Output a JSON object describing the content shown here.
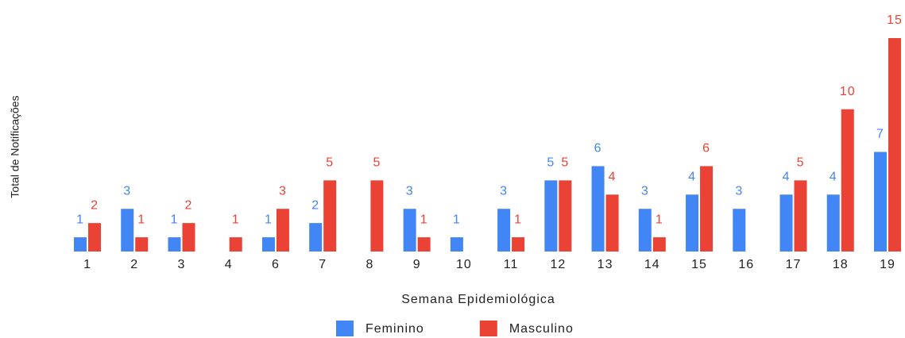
{
  "chart_data": {
    "type": "bar",
    "x_label": "Semana Epidemiológica",
    "y_label": "Total de Notificações",
    "categories": [
      "1",
      "2",
      "3",
      "4",
      "6",
      "7",
      "8",
      "9",
      "10",
      "11",
      "12",
      "13",
      "14",
      "15",
      "16",
      "17",
      "18",
      "19"
    ],
    "series": [
      {
        "name": "Feminino",
        "color": "#4285f4",
        "values": [
          1,
          3,
          1,
          null,
          1,
          2,
          null,
          3,
          1,
          3,
          5,
          6,
          3,
          4,
          3,
          4,
          4,
          7
        ]
      },
      {
        "name": "Masculino",
        "color": "#ea4335",
        "values": [
          2,
          1,
          2,
          1,
          3,
          5,
          5,
          1,
          null,
          1,
          5,
          4,
          1,
          6,
          null,
          5,
          10,
          15
        ]
      }
    ],
    "ylim": [
      0,
      15
    ],
    "legend": "bottom"
  }
}
